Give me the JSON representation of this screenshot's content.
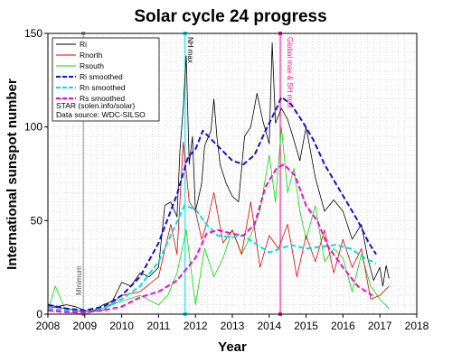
{
  "chart_data": {
    "type": "line",
    "title": "Solar cycle 24 progress",
    "xlabel": "Year",
    "ylabel": "International sunspot number",
    "xlim": [
      2008,
      2018
    ],
    "ylim": [
      0,
      150
    ],
    "x_ticks": [
      2008,
      2009,
      2010,
      2011,
      2012,
      2013,
      2014,
      2015,
      2016,
      2017,
      2018
    ],
    "y_ticks": [
      0,
      50,
      100,
      150
    ],
    "grid": "dotted minor and major",
    "legend_position": "top-left",
    "legend_notes": [
      "STAR (solen.info/solar)",
      "Data source: WDC-SILSO"
    ],
    "annotations": [
      {
        "label": "Minimum",
        "x": 2008.96,
        "color": "#999999"
      },
      {
        "label": "NH max",
        "x": 2011.72,
        "color": "#00e0e0"
      },
      {
        "label": "Global max & SH max",
        "x": 2014.3,
        "color": "#ff1493"
      }
    ],
    "series": [
      {
        "name": "Ri",
        "color": "#000000",
        "style": "solid",
        "x": [
          2008.0,
          2008.25,
          2008.5,
          2008.75,
          2009.0,
          2009.25,
          2009.5,
          2009.75,
          2010.0,
          2010.25,
          2010.5,
          2010.75,
          2011.0,
          2011.17,
          2011.33,
          2011.5,
          2011.58,
          2011.67,
          2011.75,
          2011.83,
          2011.92,
          2012.0,
          2012.08,
          2012.17,
          2012.25,
          2012.42,
          2012.5,
          2012.58,
          2012.67,
          2012.83,
          2013.0,
          2013.17,
          2013.33,
          2013.5,
          2013.67,
          2013.83,
          2014.0,
          2014.08,
          2014.17,
          2014.33,
          2014.5,
          2014.67,
          2014.83,
          2015.0,
          2015.25,
          2015.5,
          2015.75,
          2016.0,
          2016.25,
          2016.5,
          2016.67,
          2016.83,
          2017.0,
          2017.08,
          2017.17,
          2017.25
        ],
        "values": [
          5,
          4,
          5,
          4,
          2,
          2,
          5,
          7,
          17,
          15,
          22,
          20,
          25,
          58,
          60,
          52,
          88,
          110,
          138,
          80,
          95,
          55,
          62,
          70,
          90,
          98,
          115,
          95,
          80,
          70,
          63,
          60,
          95,
          100,
          118,
          103,
          91,
          145,
          102,
          110,
          104,
          93,
          82,
          100,
          73,
          55,
          61,
          55,
          40,
          48,
          30,
          18,
          25,
          15,
          26,
          19
        ]
      },
      {
        "name": "Rnorth",
        "color": "#e00000",
        "style": "solid",
        "x": [
          2008.0,
          2008.5,
          2009.0,
          2009.5,
          2010.0,
          2010.5,
          2011.0,
          2011.33,
          2011.5,
          2011.67,
          2011.83,
          2012.0,
          2012.17,
          2012.33,
          2012.5,
          2012.75,
          2013.0,
          2013.25,
          2013.5,
          2013.75,
          2014.0,
          2014.25,
          2014.5,
          2014.75,
          2015.0,
          2015.25,
          2015.5,
          2015.75,
          2016.0,
          2016.25,
          2016.5,
          2016.75,
          2017.0,
          2017.25
        ],
        "values": [
          4,
          3,
          1,
          2,
          10,
          12,
          20,
          48,
          32,
          92,
          60,
          55,
          40,
          50,
          65,
          38,
          45,
          32,
          60,
          25,
          42,
          35,
          48,
          20,
          42,
          28,
          45,
          22,
          40,
          25,
          35,
          8,
          10,
          15
        ]
      },
      {
        "name": "Rsouth",
        "color": "#00dd00",
        "style": "solid",
        "x": [
          2008.0,
          2008.2,
          2008.5,
          2009.0,
          2009.5,
          2010.0,
          2010.5,
          2011.0,
          2011.25,
          2011.5,
          2011.75,
          2012.0,
          2012.25,
          2012.5,
          2012.75,
          2013.0,
          2013.25,
          2013.5,
          2013.75,
          2014.0,
          2014.17,
          2014.33,
          2014.5,
          2014.67,
          2014.83,
          2015.0,
          2015.25,
          2015.5,
          2015.75,
          2016.0,
          2016.25,
          2016.5,
          2016.75,
          2017.0,
          2017.25
        ],
        "values": [
          2,
          15,
          1,
          0,
          3,
          7,
          10,
          5,
          10,
          22,
          45,
          5,
          35,
          20,
          30,
          45,
          32,
          42,
          55,
          85,
          60,
          100,
          65,
          78,
          55,
          40,
          58,
          28,
          35,
          30,
          12,
          32,
          15,
          8,
          3
        ]
      },
      {
        "name": "Ri smoothed",
        "color": "#1010e0",
        "style": "dashed",
        "x": [
          2008.0,
          2008.5,
          2009.0,
          2009.5,
          2010.0,
          2010.5,
          2011.0,
          2011.5,
          2011.8,
          2012.0,
          2012.2,
          2012.5,
          2012.8,
          2013.0,
          2013.3,
          2013.6,
          2013.9,
          2014.2,
          2014.33,
          2014.6,
          2014.9,
          2015.2,
          2015.5,
          2015.8,
          2016.1,
          2016.4,
          2016.7,
          2016.9
        ],
        "values": [
          5,
          3,
          2,
          4,
          10,
          20,
          38,
          64,
          84,
          88,
          98,
          92,
          86,
          82,
          80,
          85,
          98,
          110,
          116,
          112,
          103,
          93,
          80,
          70,
          60,
          50,
          38,
          32
        ]
      },
      {
        "name": "Rn smoothed",
        "color": "#00e0e0",
        "style": "dashed",
        "x": [
          2008.0,
          2008.5,
          2009.0,
          2009.5,
          2010.0,
          2010.5,
          2011.0,
          2011.4,
          2011.7,
          2012.0,
          2012.3,
          2012.6,
          2013.0,
          2013.3,
          2013.6,
          2014.0,
          2014.3,
          2014.6,
          2015.0,
          2015.4,
          2015.8,
          2016.2,
          2016.6,
          2016.9
        ],
        "values": [
          3,
          2,
          1,
          3,
          8,
          15,
          28,
          45,
          58,
          56,
          48,
          42,
          41,
          42,
          38,
          33,
          35,
          37,
          35,
          36,
          37,
          35,
          30,
          27
        ]
      },
      {
        "name": "Rs smoothed",
        "color": "#ff00dd",
        "style": "dashed",
        "x": [
          2008.0,
          2008.5,
          2009.0,
          2009.5,
          2010.0,
          2010.5,
          2011.0,
          2011.5,
          2012.0,
          2012.3,
          2012.6,
          2013.0,
          2013.3,
          2013.6,
          2013.9,
          2014.2,
          2014.4,
          2014.7,
          2015.0,
          2015.3,
          2015.6,
          2016.0,
          2016.4,
          2016.8
        ],
        "values": [
          2,
          1,
          1,
          2,
          4,
          9,
          12,
          18,
          30,
          43,
          45,
          43,
          42,
          48,
          68,
          78,
          80,
          74,
          58,
          50,
          36,
          25,
          15,
          10
        ]
      }
    ]
  }
}
